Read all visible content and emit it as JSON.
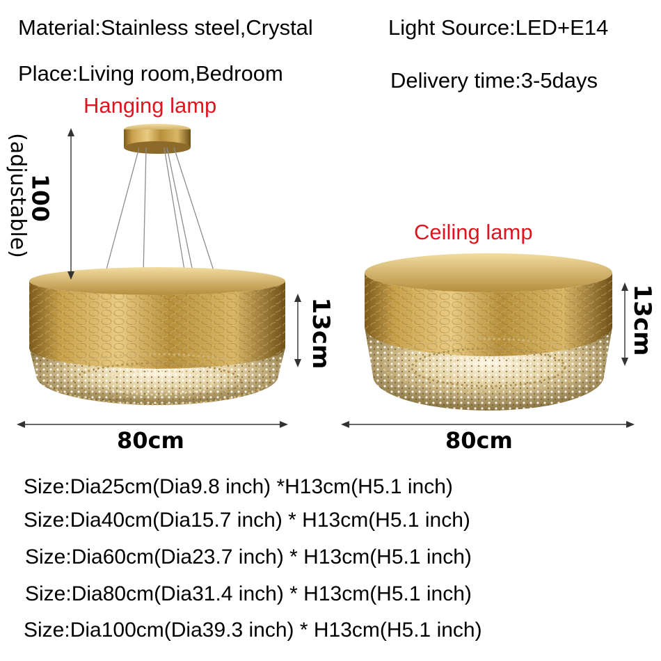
{
  "specs": {
    "material": "Material:Stainless steel,Crystal",
    "light_source": "Light Source:LED+E14",
    "place": "Place:Living room,Bedroom",
    "delivery": "Delivery time:3-5days"
  },
  "labels": {
    "hanging": "Hanging lamp",
    "ceiling": "Ceiling lamp"
  },
  "dimensions": {
    "hanging_height": "100",
    "adjustable": "(adjustable)",
    "lamp_height": "13cm",
    "diameter": "80cm"
  },
  "sizes": [
    "Size:Dia25cm(Dia9.8 inch) *H13cm(H5.1 inch)",
    "Size:Dia40cm(Dia15.7 inch) * H13cm(H5.1 inch)",
    "Size:Dia60cm(Dia23.7 inch) * H13cm(H5.1 inch)",
    "Size:Dia80cm(Dia31.4 inch) * H13cm(H5.1 inch)",
    "Size:Dia100cm(Dia39.3 inch) * H13cm(H5.1 inch)"
  ],
  "colors": {
    "label_red": "#e0141e",
    "gold": "#c9a04a"
  }
}
